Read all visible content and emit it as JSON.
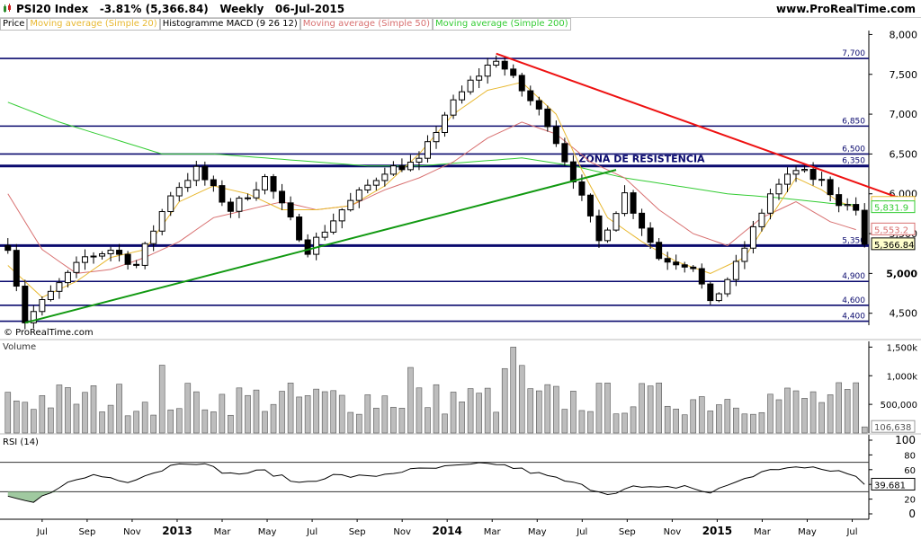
{
  "header": {
    "title_parts": [
      "PSI20 Index",
      "-3.81% (5,366.84)",
      "Weekly",
      "06-Jul-2015"
    ],
    "site": "www.ProRealTime.com"
  },
  "legend": [
    {
      "label": "Price",
      "color": "#000000"
    },
    {
      "label": "Moving average (Simple 20)",
      "color": "#e8b830"
    },
    {
      "label": "Histogramme MACD (9 26 12)",
      "color": "#000000"
    },
    {
      "label": "Moving average (Simple 50)",
      "color": "#d87070"
    },
    {
      "label": "Moving average (Simple 200)",
      "color": "#33cc33"
    }
  ],
  "watermark": "© ProRealTime.com",
  "chart_data": [
    {
      "type": "candlestick",
      "title": "PSI20 Index",
      "y_ticks": [
        8000,
        7500,
        7000,
        6500,
        6000,
        5500,
        5000,
        4500
      ],
      "y_tick_labels": [
        "8,000",
        "7,500",
        "7,000",
        "6,500",
        "6,000",
        "5,500",
        "5,000",
        "4,500"
      ],
      "ylim": [
        4350,
        8050
      ],
      "x_labels": [
        "Jul",
        "Sep",
        "Nov",
        "2013",
        "Mar",
        "May",
        "Jul",
        "Sep",
        "Nov",
        "2014",
        "Mar",
        "May",
        "Jul",
        "Sep",
        "Nov",
        "2015",
        "Mar",
        "May",
        "Jul"
      ],
      "x_bold_labels": [
        "2013",
        "2014",
        "2015"
      ],
      "price_anchors": [
        [
          0,
          5350
        ],
        [
          2,
          4400
        ],
        [
          5,
          4750
        ],
        [
          9,
          5200
        ],
        [
          12,
          5300
        ],
        [
          15,
          5100
        ],
        [
          19,
          6000
        ],
        [
          22,
          6300
        ],
        [
          26,
          5800
        ],
        [
          30,
          6200
        ],
        [
          35,
          5300
        ],
        [
          39,
          5800
        ],
        [
          44,
          6300
        ],
        [
          48,
          6400
        ],
        [
          51,
          7000
        ],
        [
          54,
          7400
        ],
        [
          57,
          7700
        ],
        [
          60,
          7300
        ],
        [
          63,
          6900
        ],
        [
          66,
          6200
        ],
        [
          69,
          5400
        ],
        [
          72,
          6000
        ],
        [
          76,
          5200
        ],
        [
          80,
          5100
        ],
        [
          82,
          4600
        ],
        [
          85,
          5100
        ],
        [
          89,
          6000
        ],
        [
          92,
          6300
        ],
        [
          95,
          6150
        ],
        [
          97,
          5900
        ],
        [
          99,
          5800
        ],
        [
          100,
          5400
        ]
      ],
      "last_price": 5366.84,
      "levels": [
        {
          "value": 7700,
          "label": "7,700"
        },
        {
          "value": 6850,
          "label": "6,850"
        },
        {
          "value": 6500,
          "label": "6,500"
        },
        {
          "value": 6350,
          "label": "6,350"
        },
        {
          "value": 5350,
          "label": "5,350"
        },
        {
          "value": 4900,
          "label": "4,900"
        },
        {
          "value": 4600,
          "label": "4,600"
        },
        {
          "value": 4400,
          "label": "4,400"
        }
      ],
      "zone_label": "ZONA DE RESISTÊNCIA",
      "trendlines": [
        {
          "name": "resistance",
          "color": "#ee1111",
          "points": [
            [
              57,
              7760
            ],
            [
              104,
              5950
            ]
          ]
        },
        {
          "name": "support",
          "color": "#119911",
          "points": [
            [
              2,
              4380
            ],
            [
              71,
              6300
            ]
          ]
        }
      ],
      "ma20": [
        [
          0,
          5100
        ],
        [
          4,
          4700
        ],
        [
          8,
          4900
        ],
        [
          12,
          5200
        ],
        [
          16,
          5300
        ],
        [
          20,
          5900
        ],
        [
          24,
          6100
        ],
        [
          28,
          6000
        ],
        [
          32,
          5800
        ],
        [
          36,
          5800
        ],
        [
          40,
          5850
        ],
        [
          44,
          6100
        ],
        [
          48,
          6500
        ],
        [
          52,
          7000
        ],
        [
          56,
          7300
        ],
        [
          60,
          7400
        ],
        [
          64,
          7000
        ],
        [
          67,
          6300
        ],
        [
          70,
          5700
        ],
        [
          74,
          5400
        ],
        [
          78,
          5150
        ],
        [
          82,
          5000
        ],
        [
          86,
          5200
        ],
        [
          89,
          5700
        ],
        [
          92,
          6200
        ],
        [
          95,
          6050
        ],
        [
          97,
          5900
        ],
        [
          99,
          5830
        ]
      ],
      "ma50": [
        [
          0,
          6000
        ],
        [
          4,
          5300
        ],
        [
          8,
          5000
        ],
        [
          12,
          5050
        ],
        [
          16,
          5200
        ],
        [
          20,
          5400
        ],
        [
          24,
          5700
        ],
        [
          28,
          5800
        ],
        [
          32,
          5900
        ],
        [
          36,
          5800
        ],
        [
          40,
          5850
        ],
        [
          44,
          6050
        ],
        [
          48,
          6200
        ],
        [
          52,
          6400
        ],
        [
          56,
          6700
        ],
        [
          60,
          6900
        ],
        [
          64,
          6750
        ],
        [
          68,
          6400
        ],
        [
          72,
          6200
        ],
        [
          76,
          5800
        ],
        [
          80,
          5500
        ],
        [
          84,
          5350
        ],
        [
          88,
          5700
        ],
        [
          92,
          5900
        ],
        [
          96,
          5650
        ],
        [
          99,
          5550
        ]
      ],
      "ma200": [
        [
          0,
          7150
        ],
        [
          6,
          6900
        ],
        [
          12,
          6700
        ],
        [
          18,
          6500
        ],
        [
          24,
          6500
        ],
        [
          30,
          6450
        ],
        [
          36,
          6400
        ],
        [
          42,
          6350
        ],
        [
          48,
          6350
        ],
        [
          54,
          6400
        ],
        [
          60,
          6450
        ],
        [
          66,
          6350
        ],
        [
          72,
          6200
        ],
        [
          78,
          6100
        ],
        [
          84,
          6000
        ],
        [
          90,
          5950
        ],
        [
          96,
          5880
        ],
        [
          99,
          5860
        ]
      ],
      "value_tags": [
        {
          "label": "5,886.7",
          "value": 5886.7,
          "color": "#e8b830"
        },
        {
          "label": "5,831.9",
          "value": 5831.9,
          "color": "#33cc33"
        },
        {
          "label": "5,553.2",
          "value": 5553.2,
          "color": "#d87070"
        },
        {
          "label": "5,366.84",
          "value": 5366.84,
          "color": "#000000"
        }
      ]
    },
    {
      "type": "bar",
      "title": "Volume",
      "y_ticks": [
        1500000,
        1000000,
        500000
      ],
      "y_tick_labels": [
        "1,500k",
        "1,000k",
        "500,000"
      ],
      "ylim": [
        0,
        1600000
      ],
      "last_value": 106638,
      "last_label": "106,638"
    },
    {
      "type": "line",
      "title": "RSI (14)",
      "y_ticks": [
        100,
        80,
        60,
        40,
        20,
        0
      ],
      "y_tick_labels": [
        "100",
        "80",
        "60",
        "40",
        "20",
        "0"
      ],
      "ylim": [
        0,
        100
      ],
      "levels": [
        70,
        30
      ],
      "last_value": 39.681,
      "last_label": "39.681",
      "anchors": [
        [
          0,
          24
        ],
        [
          3,
          15
        ],
        [
          6,
          38
        ],
        [
          10,
          53
        ],
        [
          14,
          45
        ],
        [
          18,
          60
        ],
        [
          20,
          70
        ],
        [
          22,
          70
        ],
        [
          26,
          54
        ],
        [
          30,
          58
        ],
        [
          34,
          42
        ],
        [
          38,
          52
        ],
        [
          42,
          50
        ],
        [
          46,
          58
        ],
        [
          50,
          62
        ],
        [
          54,
          66
        ],
        [
          57,
          68
        ],
        [
          60,
          60
        ],
        [
          64,
          48
        ],
        [
          67,
          38
        ],
        [
          70,
          28
        ],
        [
          73,
          36
        ],
        [
          76,
          34
        ],
        [
          79,
          38
        ],
        [
          82,
          28
        ],
        [
          85,
          44
        ],
        [
          88,
          56
        ],
        [
          91,
          64
        ],
        [
          94,
          61
        ],
        [
          97,
          58
        ],
        [
          99,
          50
        ],
        [
          100,
          40
        ]
      ]
    }
  ]
}
